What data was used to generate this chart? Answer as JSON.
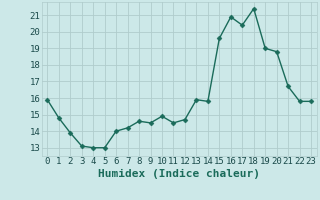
{
  "x": [
    0,
    1,
    2,
    3,
    4,
    5,
    6,
    7,
    8,
    9,
    10,
    11,
    12,
    13,
    14,
    15,
    16,
    17,
    18,
    19,
    20,
    21,
    22,
    23
  ],
  "y": [
    15.9,
    14.8,
    13.9,
    13.1,
    13.0,
    13.0,
    14.0,
    14.2,
    14.6,
    14.5,
    14.9,
    14.5,
    14.7,
    15.9,
    15.8,
    19.6,
    20.9,
    20.4,
    21.4,
    19.0,
    18.8,
    16.7,
    15.8,
    15.8
  ],
  "line_color": "#1a6b5a",
  "marker_color": "#1a6b5a",
  "bg_color": "#cce8e8",
  "grid_color": "#b0cccc",
  "xlabel": "Humidex (Indice chaleur)",
  "xlim": [
    -0.5,
    23.5
  ],
  "ylim": [
    12.5,
    21.8
  ],
  "yticks": [
    13,
    14,
    15,
    16,
    17,
    18,
    19,
    20,
    21
  ],
  "xticks": [
    0,
    1,
    2,
    3,
    4,
    5,
    6,
    7,
    8,
    9,
    10,
    11,
    12,
    13,
    14,
    15,
    16,
    17,
    18,
    19,
    20,
    21,
    22,
    23
  ],
  "tick_fontsize": 6.5,
  "xlabel_fontsize": 8,
  "marker_size": 2.5,
  "line_width": 1.0
}
